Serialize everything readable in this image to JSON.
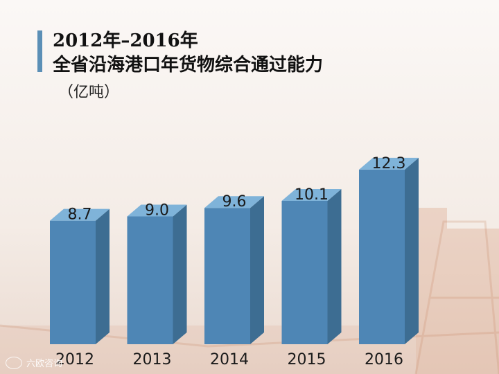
{
  "title_line1": "2012年–2016年",
  "title_line2": "全省沿海港口年货物综合通过能力",
  "unit": "（亿吨）",
  "watermark": "六欧咨询",
  "colors": {
    "accent_bar": "#5b8fb6",
    "bar_front": "#4e86b5",
    "bar_top": "#7fb3d9",
    "bar_side": "#3d6d92",
    "background": "#f5eee9"
  },
  "chart_data": {
    "type": "bar",
    "categories": [
      "2012",
      "2013",
      "2014",
      "2015",
      "2016"
    ],
    "values": [
      8.7,
      9.0,
      9.6,
      10.1,
      12.3
    ],
    "value_labels": [
      "8.7",
      "9.0",
      "9.6",
      "10.1",
      "12.3"
    ],
    "title": "2012年–2016年 全省沿海港口年货物综合通过能力",
    "ylabel": "（亿吨）",
    "grid": false,
    "legend": "none"
  }
}
